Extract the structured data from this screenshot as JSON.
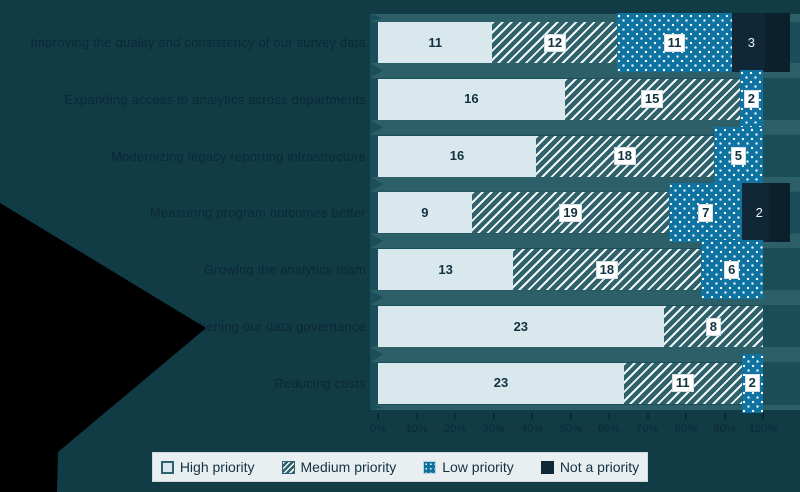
{
  "colors": {
    "page_bg": "#113c46",
    "plot_bg": "#1a4e58",
    "row_separator": "#2d5f68",
    "high_priority": "#d9e8ec",
    "medium_priority_base": "#2e616b",
    "medium_priority_stripe": "#f2f7f8",
    "low_priority": "#0f73a1",
    "not_a_priority": "#0f2736",
    "ink_dark_navy": "#0c2737",
    "legend_bg": "#e9eff1",
    "arrow_black": "#000000",
    "value_text": "#123240",
    "value_box_bg": "#ffffff"
  },
  "chart_data": {
    "type": "bar",
    "variant": "horizontal-stacked-normalized",
    "categories": [
      "High priority",
      "Medium priority",
      "Low priority",
      "Not a priority"
    ],
    "rows": [
      {
        "label": "Improving the quality and consistency of our survey data",
        "values": [
          11,
          12,
          11,
          3
        ]
      },
      {
        "label": "Expanding access to analytics across departments",
        "values": [
          16,
          15,
          2,
          0
        ]
      },
      {
        "label": "Modernizing legacy reporting infrastructure",
        "values": [
          16,
          18,
          5,
          0
        ]
      },
      {
        "label": "Measuring program outcomes better",
        "values": [
          9,
          19,
          7,
          2
        ]
      },
      {
        "label": "Growing the analytics team",
        "values": [
          13,
          18,
          6,
          0
        ]
      },
      {
        "label": "Strengthening our data governance",
        "values": [
          23,
          8,
          0,
          0
        ]
      },
      {
        "label": "Reducing costs",
        "values": [
          23,
          11,
          2,
          0
        ]
      }
    ],
    "x_axis": {
      "tick_labels": [
        "0%",
        "10%",
        "20%",
        "30%",
        "40%",
        "50%",
        "60%",
        "70%",
        "80%",
        "90%",
        "100%"
      ],
      "range": [
        0,
        100
      ],
      "grid": false
    },
    "legend": {
      "position": "bottom",
      "entries": [
        "High priority",
        "Medium priority",
        "Low priority",
        "Not a priority"
      ]
    },
    "emphasis": "Low priority and Not a priority segments are drawn taller than the bar and the Not a priority block extends past the 100% line"
  }
}
